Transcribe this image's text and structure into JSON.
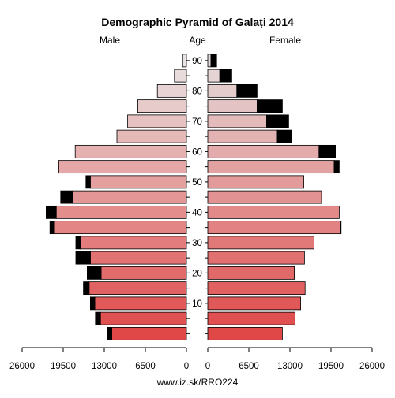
{
  "chart_data": {
    "type": "bar",
    "title": "Demographic Pyramid of Galați 2014",
    "left_label": "Male",
    "center_label": "Age",
    "right_label": "Female",
    "footer": "www.iz.sk/RRO224",
    "x_ticks_left": [
      "26000",
      "19500",
      "13000",
      "6500",
      "0"
    ],
    "x_ticks_right": [
      "0",
      "6500",
      "13000",
      "19500",
      "26000"
    ],
    "xlim": [
      0,
      26000
    ],
    "age_ticks": [
      10,
      20,
      30,
      40,
      50,
      60,
      70,
      80,
      90
    ],
    "age_groups": [
      "0-4",
      "5-9",
      "10-14",
      "15-19",
      "20-24",
      "25-29",
      "30-34",
      "35-39",
      "40-44",
      "45-49",
      "50-54",
      "55-59",
      "60-64",
      "65-69",
      "70-74",
      "75-79",
      "80-84",
      "85-89",
      "90+"
    ],
    "series": [
      {
        "name": "Male",
        "segment": "base",
        "values": [
          11800,
          13600,
          14500,
          15400,
          13500,
          15200,
          16800,
          21000,
          20600,
          18000,
          15200,
          20200,
          17600,
          11000,
          9300,
          7700,
          4600,
          1900,
          600
        ]
      },
      {
        "name": "Male",
        "segment": "excess",
        "values": [
          700,
          800,
          700,
          900,
          2200,
          2300,
          700,
          600,
          1600,
          1900,
          700,
          0,
          0,
          0,
          0,
          0,
          0,
          0,
          0
        ]
      },
      {
        "name": "Female",
        "segment": "base",
        "values": [
          11800,
          13800,
          14700,
          15400,
          13700,
          15300,
          16800,
          21000,
          20800,
          18000,
          15200,
          20000,
          17600,
          11000,
          9300,
          7800,
          4600,
          1900,
          500
        ]
      },
      {
        "name": "Female",
        "segment": "excess",
        "values": [
          0,
          0,
          0,
          0,
          0,
          0,
          0,
          100,
          0,
          0,
          0,
          800,
          2600,
          2300,
          3500,
          4000,
          3200,
          1900,
          900
        ]
      }
    ],
    "colors": {
      "male_bottom": "#e04848",
      "male_top": "#e8e4e4",
      "female_bottom": "#e04848",
      "female_top": "#e4dcdc",
      "excess": "#000000"
    }
  }
}
